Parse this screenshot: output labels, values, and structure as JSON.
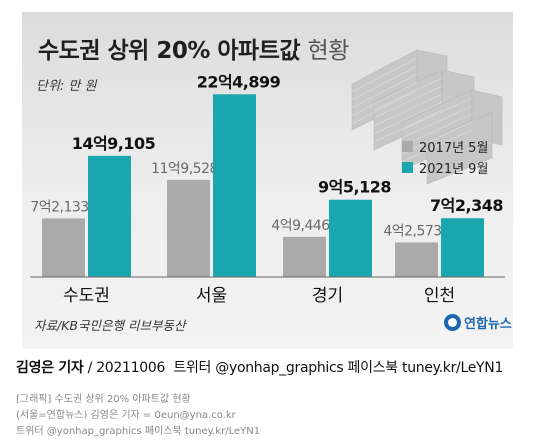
{
  "title_main": "수도권 상위 20% 아파트값",
  "title_sub": "현황",
  "unit": "단위: 만 원",
  "source": "자료/KB국민은행 리브부동산",
  "logo_text": "연합뉴스",
  "byline": {
    "author": "김영은 기자",
    "date": "20211006",
    "social": "트위터 @yonhap_graphics  페이스북 tuney.kr/LeYN1"
  },
  "footer": {
    "line1": "[그래픽] 수도권 상위 20% 아파트값 현황",
    "line2": "(서울=연합뉴스) 김영은 기자 = 0eun@yna.co.kr",
    "line3": "트위터 @yonhap_graphics 페이스북 tuney.kr/LeYN1"
  },
  "colors": {
    "series_2017": "#aaaaaa",
    "series_2021": "#1aa6ae"
  },
  "chart_data": {
    "type": "bar",
    "categories": [
      "수도권",
      "서울",
      "경기",
      "인천"
    ],
    "series": [
      {
        "name": "2017년 5월",
        "values": [
          72133,
          119528,
          49446,
          42573
        ],
        "labels": [
          "7억2,133",
          "11억9,528",
          "4억9,446",
          "4억2,573"
        ]
      },
      {
        "name": "2021년 9월",
        "values": [
          149105,
          224899,
          95128,
          72348
        ],
        "labels": [
          "14억9,105",
          "22억4,899",
          "9억5,128",
          "7억2,348"
        ]
      }
    ],
    "ylim": [
      0,
      240000
    ],
    "legend_position": "right",
    "grid": false
  }
}
